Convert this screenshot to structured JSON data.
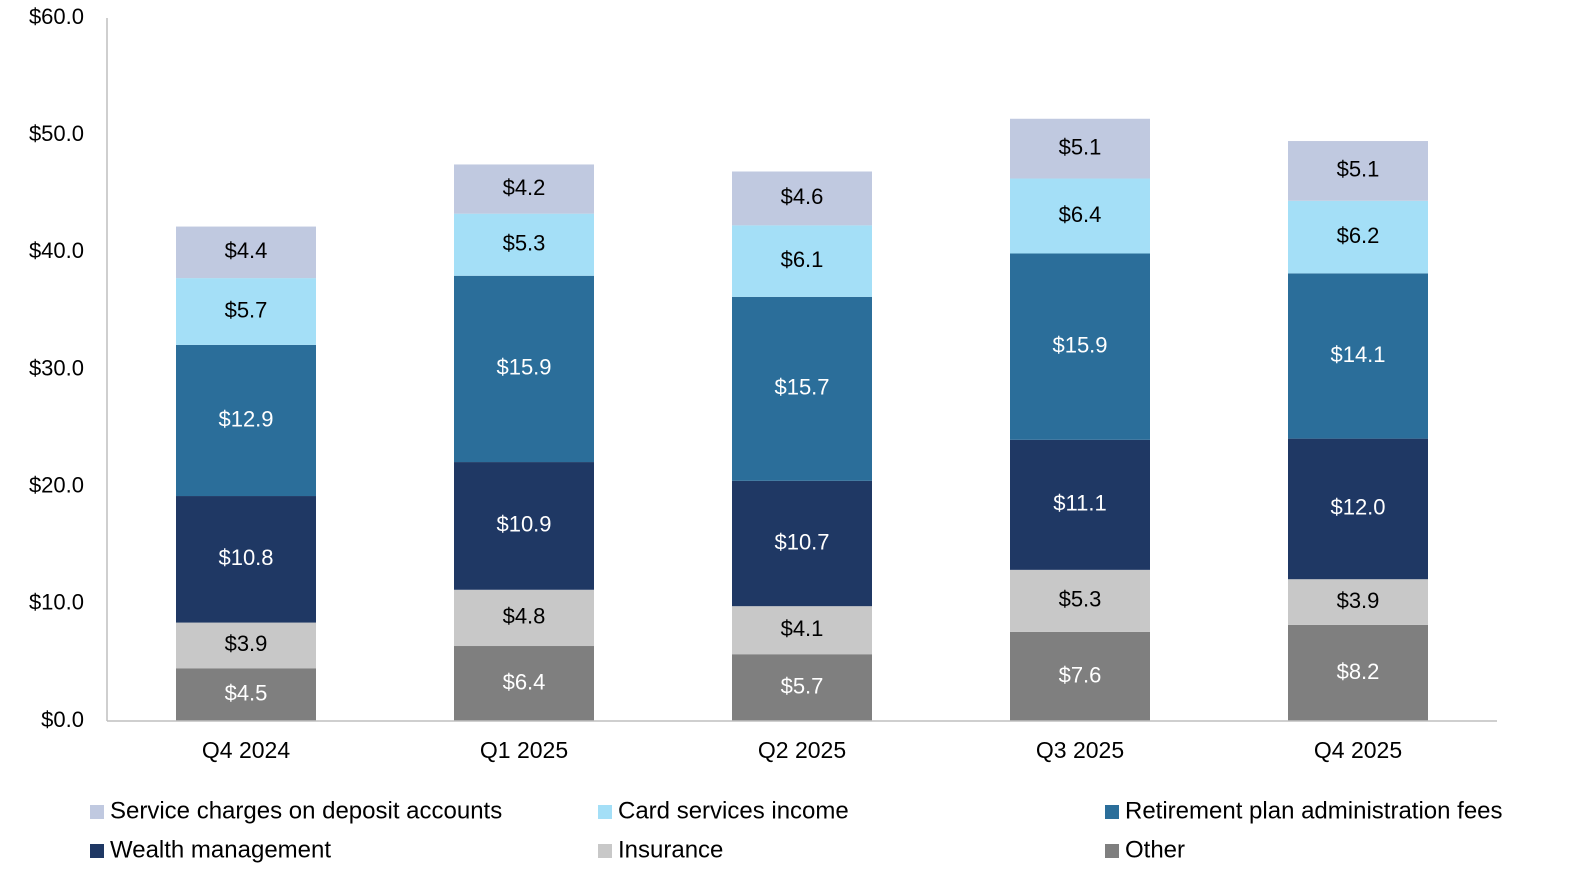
{
  "chart_data": {
    "type": "stacked_bar",
    "categories": [
      "Q4 2024",
      "Q1 2025",
      "Q2 2025",
      "Q3 2025",
      "Q4 2025"
    ],
    "series": [
      {
        "name": "Service charges on deposit accounts",
        "color": "#c0c9e0",
        "values": [
          4.4,
          4.2,
          4.6,
          5.1,
          5.1
        ],
        "value_labels": [
          "$4.4",
          "$4.2",
          "$4.6",
          "$5.1",
          "$5.1"
        ]
      },
      {
        "name": "Card services income",
        "color": "#a4dff7",
        "values": [
          5.7,
          5.3,
          6.1,
          6.4,
          6.2
        ],
        "value_labels": [
          "$5.7",
          "$5.3",
          "$6.1",
          "$6.4",
          "$6.2"
        ]
      },
      {
        "name": "Retirement plan administration fees",
        "color": "#2b6e9a",
        "values": [
          12.9,
          15.9,
          15.7,
          15.9,
          14.1
        ],
        "value_labels": [
          "$12.9",
          "$15.9",
          "$15.7",
          "$15.9",
          "$14.1"
        ]
      },
      {
        "name": "Wealth management",
        "color": "#1f3864",
        "values": [
          10.8,
          10.9,
          10.7,
          11.1,
          12.0
        ],
        "value_labels": [
          "$10.8",
          "$10.9",
          "$10.7",
          "$11.1",
          "$12.0"
        ]
      },
      {
        "name": "Insurance",
        "color": "#c8c8c8",
        "values": [
          3.9,
          4.8,
          4.1,
          5.3,
          3.9
        ],
        "value_labels": [
          "$3.9",
          "$4.8",
          "$4.1",
          "$5.3",
          "$3.9"
        ]
      },
      {
        "name": "Other",
        "color": "#7f7f7f",
        "values": [
          4.5,
          6.4,
          5.7,
          7.6,
          8.2
        ],
        "value_labels": [
          "$4.5",
          "$6.4",
          "$5.7",
          "$7.6",
          "$8.2"
        ]
      }
    ],
    "ylim": [
      0,
      60
    ],
    "yticks": [
      {
        "value": 0,
        "label": "$0.0"
      },
      {
        "value": 10,
        "label": "$10.0"
      },
      {
        "value": 20,
        "label": "$20.0"
      },
      {
        "value": 30,
        "label": "$30.0"
      },
      {
        "value": 40,
        "label": "$40.0"
      },
      {
        "value": 50,
        "label": "$50.0"
      },
      {
        "value": 60,
        "label": "$60.0"
      }
    ],
    "grid": false,
    "legend": "bottom"
  }
}
